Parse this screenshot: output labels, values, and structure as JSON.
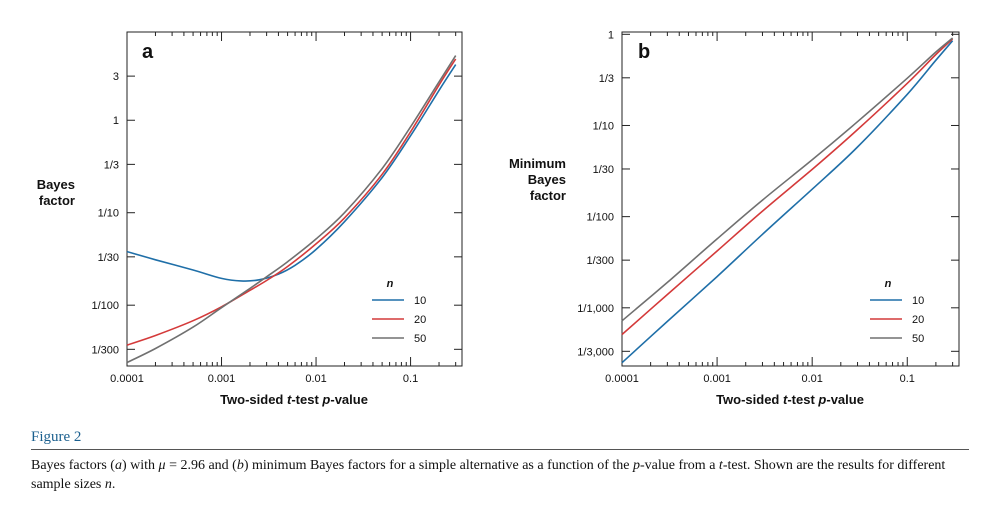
{
  "figure": {
    "title": "Figure 2",
    "caption_html": "Bayes factors (<i>a</i>) with <i>μ</i> = 2.96 and (<i>b</i>) minimum Bayes factors for a simple alternative as a function of the <i>p</i>-value from a <i>t</i>-test. Shown are the results for different sample sizes <i>n</i>."
  },
  "colors": {
    "n10": "#1f6fa8",
    "n20": "#d43a3a",
    "n50": "#707070"
  },
  "chart_data": [
    {
      "type": "line",
      "panel_label": "a",
      "xlabel_parts": [
        "Two-sided ",
        "t",
        "-test ",
        "p",
        "-value"
      ],
      "ylabel_lines": [
        "Bayes",
        "factor"
      ],
      "x_scale": "log",
      "y_scale": "log",
      "xlim": [
        0.0001,
        0.35
      ],
      "ylim": [
        0.0022,
        9
      ],
      "x_ticks": [
        0.0001,
        0.001,
        0.01,
        0.1
      ],
      "x_tick_labels": [
        "0.0001",
        "0.001",
        "0.01",
        "0.1"
      ],
      "y_ticks": [
        0.003333,
        0.01,
        0.03333,
        0.1,
        0.3333,
        1,
        3
      ],
      "y_tick_labels": [
        "1/300",
        "1/100",
        "1/30",
        "1/10",
        "1/3",
        "1",
        "3"
      ],
      "legend": {
        "title": "n",
        "placement": "bottom-right"
      },
      "series": [
        {
          "name": "10",
          "color_key": "n10",
          "x": [
            0.0001,
            0.0002,
            0.0005,
            0.001,
            0.0016,
            0.0025,
            0.004,
            0.006,
            0.01,
            0.02,
            0.05,
            0.1,
            0.2,
            0.3
          ],
          "y": [
            0.038,
            0.031,
            0.024,
            0.0195,
            0.0183,
            0.0188,
            0.0217,
            0.027,
            0.04,
            0.08,
            0.24,
            0.68,
            2.1,
            4.0
          ]
        },
        {
          "name": "20",
          "color_key": "n20",
          "x": [
            0.0001,
            0.0002,
            0.0005,
            0.001,
            0.002,
            0.003,
            0.005,
            0.01,
            0.02,
            0.05,
            0.1,
            0.2,
            0.3
          ],
          "y": [
            0.0037,
            0.0047,
            0.0068,
            0.0096,
            0.0145,
            0.0185,
            0.0262,
            0.046,
            0.088,
            0.26,
            0.75,
            2.4,
            4.6
          ]
        },
        {
          "name": "50",
          "color_key": "n50",
          "x": [
            0.0001,
            0.0002,
            0.0005,
            0.001,
            0.002,
            0.003,
            0.005,
            0.01,
            0.02,
            0.05,
            0.1,
            0.2,
            0.3
          ],
          "y": [
            0.0024,
            0.0034,
            0.0058,
            0.0094,
            0.0152,
            0.0203,
            0.0295,
            0.052,
            0.1,
            0.3,
            0.85,
            2.6,
            5.0
          ]
        }
      ]
    },
    {
      "type": "line",
      "panel_label": "b",
      "xlabel_parts": [
        "Two-sided ",
        "t",
        "-test ",
        "p",
        "-value"
      ],
      "ylabel_lines": [
        "Minimum",
        "Bayes",
        "factor"
      ],
      "x_scale": "log",
      "y_scale": "log",
      "xlim": [
        0.0001,
        0.35
      ],
      "ylim": [
        0.00023,
        1.06
      ],
      "x_ticks": [
        0.0001,
        0.001,
        0.01,
        0.1
      ],
      "x_tick_labels": [
        "0.0001",
        "0.001",
        "0.01",
        "0.1"
      ],
      "y_ticks": [
        0.0003333,
        0.001,
        0.003333,
        0.01,
        0.03333,
        0.1,
        0.3333,
        1
      ],
      "y_tick_labels": [
        "1/3,000",
        "1/1,000",
        "1/300",
        "1/100",
        "1/30",
        "1/10",
        "1/3",
        "1"
      ],
      "legend": {
        "title": "n",
        "placement": "bottom-right"
      },
      "series": [
        {
          "name": "10",
          "color_key": "n10",
          "x": [
            0.0001,
            0.0003,
            0.001,
            0.003,
            0.01,
            0.03,
            0.1,
            0.2,
            0.3
          ],
          "y": [
            0.00025,
            0.00071,
            0.0022,
            0.0064,
            0.02,
            0.058,
            0.22,
            0.52,
            0.85
          ]
        },
        {
          "name": "20",
          "color_key": "n20",
          "x": [
            0.0001,
            0.0003,
            0.001,
            0.003,
            0.01,
            0.03,
            0.1,
            0.2,
            0.3
          ],
          "y": [
            0.00051,
            0.0014,
            0.0042,
            0.0115,
            0.033,
            0.09,
            0.29,
            0.6,
            0.89
          ]
        },
        {
          "name": "50",
          "color_key": "n50",
          "x": [
            0.0001,
            0.0003,
            0.001,
            0.003,
            0.01,
            0.03,
            0.1,
            0.2,
            0.3
          ],
          "y": [
            0.00072,
            0.0019,
            0.0057,
            0.0152,
            0.042,
            0.11,
            0.33,
            0.64,
            0.91
          ]
        }
      ]
    }
  ]
}
